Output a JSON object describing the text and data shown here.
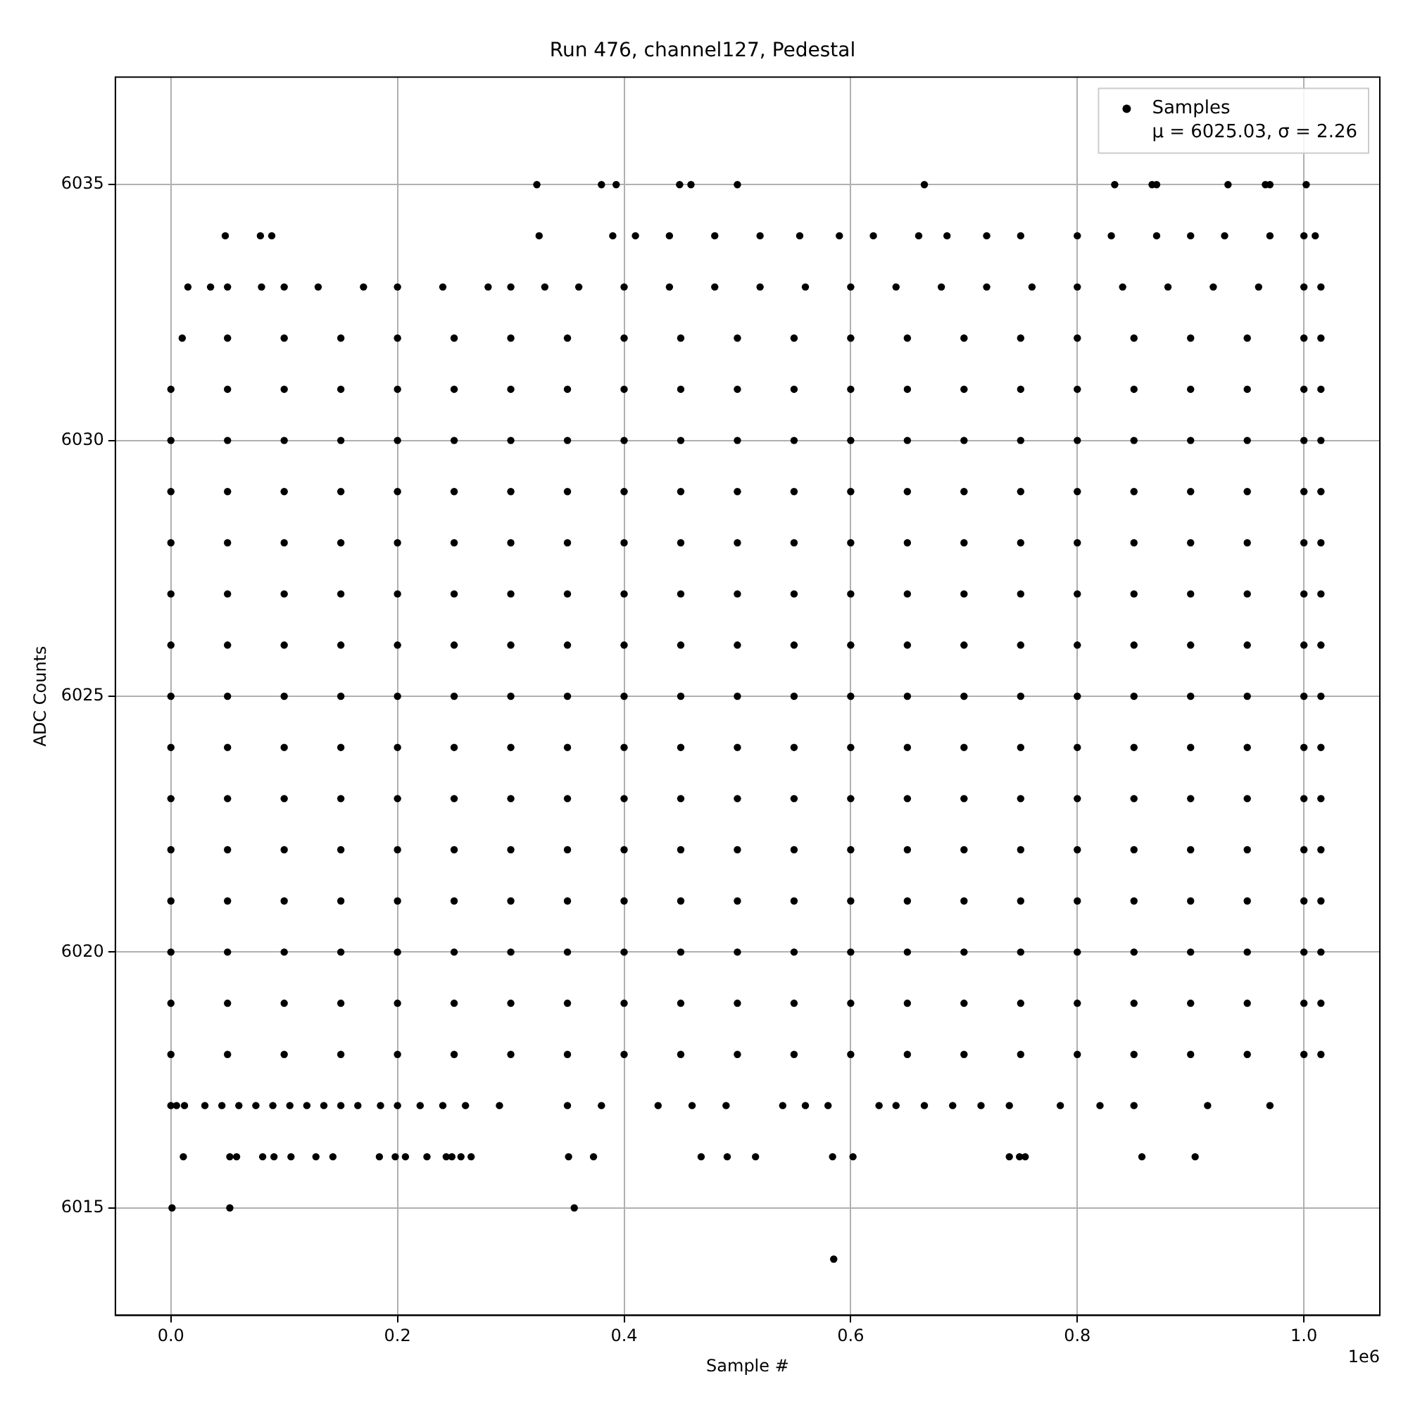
{
  "chart_data": {
    "type": "scatter",
    "title": "Run 476, channel127, Pedestal",
    "xlabel": "Sample #",
    "ylabel": "ADC Counts",
    "xlim": [
      -0.049,
      1.067
    ],
    "ylim": [
      6012.9,
      6037.1
    ],
    "xticks": [
      {
        "value": 0,
        "label": "0.0"
      },
      0.2,
      0.4,
      0.6,
      0.8,
      {
        "value": 1,
        "label": "1.0"
      }
    ],
    "yticks": [
      6015,
      6020,
      6025,
      6030,
      6035
    ],
    "grid": true,
    "legend": "top right",
    "marker": "circle",
    "annotations": [
      "1e6"
    ],
    "x": [
      0,
      0.05,
      0.1,
      0.15,
      0.2,
      0.25,
      0.3,
      0.35,
      0.4,
      0.45,
      0.5,
      0.55,
      0.6,
      0.65,
      0.7,
      0.75,
      0.8,
      0.85,
      0.9,
      0.95,
      1,
      1.015,
      0,
      0.05,
      0.1,
      0.15,
      0.2,
      0.25,
      0.3,
      0.35,
      0.4,
      0.45,
      0.5,
      0.55,
      0.6,
      0.65,
      0.7,
      0.75,
      0.8,
      0.85,
      0.9,
      0.95,
      1,
      1.015,
      0,
      0.05,
      0.1,
      0.15,
      0.2,
      0.25,
      0.3,
      0.35,
      0.4,
      0.45,
      0.5,
      0.55,
      0.6,
      0.65,
      0.7,
      0.75,
      0.8,
      0.85,
      0.9,
      0.95,
      1,
      1.015,
      0,
      0.05,
      0.1,
      0.15,
      0.2,
      0.25,
      0.3,
      0.35,
      0.4,
      0.45,
      0.5,
      0.55,
      0.6,
      0.65,
      0.7,
      0.75,
      0.8,
      0.85,
      0.9,
      0.95,
      1,
      1.015,
      0,
      0.05,
      0.1,
      0.15,
      0.2,
      0.25,
      0.3,
      0.35,
      0.4,
      0.45,
      0.5,
      0.55,
      0.6,
      0.65,
      0.7,
      0.75,
      0.8,
      0.85,
      0.9,
      0.95,
      1,
      1.015,
      0,
      0.05,
      0.1,
      0.15,
      0.2,
      0.25,
      0.3,
      0.35,
      0.4,
      0.45,
      0.5,
      0.55,
      0.6,
      0.65,
      0.7,
      0.75,
      0.8,
      0.85,
      0.9,
      0.95,
      1,
      1.015,
      0,
      0.05,
      0.1,
      0.15,
      0.2,
      0.25,
      0.3,
      0.35,
      0.4,
      0.45,
      0.5,
      0.55,
      0.6,
      0.65,
      0.7,
      0.75,
      0.8,
      0.85,
      0.9,
      0.95,
      1,
      1.015,
      0,
      0.05,
      0.1,
      0.15,
      0.2,
      0.25,
      0.3,
      0.35,
      0.4,
      0.45,
      0.5,
      0.55,
      0.6,
      0.65,
      0.7,
      0.75,
      0.8,
      0.85,
      0.9,
      0.95,
      1,
      1.015,
      0,
      0.05,
      0.1,
      0.15,
      0.2,
      0.25,
      0.3,
      0.35,
      0.4,
      0.45,
      0.5,
      0.55,
      0.6,
      0.65,
      0.7,
      0.75,
      0.8,
      0.85,
      0.9,
      0.95,
      1,
      1.015,
      0,
      0.05,
      0.1,
      0.15,
      0.2,
      0.25,
      0.3,
      0.35,
      0.4,
      0.45,
      0.5,
      0.55,
      0.6,
      0.65,
      0.7,
      0.75,
      0.8,
      0.85,
      0.9,
      0.95,
      1,
      1.015,
      0,
      0.05,
      0.1,
      0.15,
      0.2,
      0.25,
      0.3,
      0.35,
      0.4,
      0.45,
      0.5,
      0.55,
      0.6,
      0.65,
      0.7,
      0.75,
      0.8,
      0.85,
      0.9,
      0.95,
      1,
      1.015,
      0,
      0.05,
      0.1,
      0.15,
      0.2,
      0.25,
      0.3,
      0.35,
      0.4,
      0.45,
      0.5,
      0.55,
      0.6,
      0.65,
      0.7,
      0.75,
      0.8,
      0.85,
      0.9,
      0.95,
      1,
      1.015,
      0,
      0.05,
      0.1,
      0.15,
      0.2,
      0.25,
      0.3,
      0.35,
      0.4,
      0.45,
      0.5,
      0.55,
      0.6,
      0.65,
      0.7,
      0.75,
      0.8,
      0.85,
      0.9,
      0.95,
      1,
      1.015,
      0,
      0.05,
      0.1,
      0.15,
      0.2,
      0.25,
      0.3,
      0.35,
      0.4,
      0.45,
      0.5,
      0.55,
      0.6,
      0.65,
      0.7,
      0.75,
      0.8,
      0.85,
      0.9,
      0.95,
      1,
      1.015,
      0.01,
      0.05,
      0.1,
      0.15,
      0.2,
      0.25,
      0.3,
      0.35,
      0.4,
      0.45,
      0.5,
      0.55,
      0.6,
      0.65,
      0.7,
      0.75,
      0.8,
      0.85,
      0.9,
      0.95,
      1,
      1.015,
      0.015,
      0.035,
      0.05,
      0.08,
      0.1,
      0.13,
      0.17,
      0.2,
      0.24,
      0.28,
      0.3,
      0.33,
      0.36,
      0.4,
      0.44,
      0.48,
      0.52,
      0.56,
      0.6,
      0.64,
      0.68,
      0.72,
      0.76,
      0.8,
      0.84,
      0.88,
      0.92,
      0.96,
      1,
      1.015,
      0.048,
      0.079,
      0.089,
      0.325,
      0.39,
      0.41,
      0.44,
      0.48,
      0.52,
      0.555,
      0.59,
      0.62,
      0.66,
      0.685,
      0.72,
      0.75,
      0.8,
      0.83,
      0.87,
      0.9,
      0.93,
      0.97,
      1,
      1.01,
      0.323,
      0.38,
      0.393,
      0.449,
      0.459,
      0.5,
      0.665,
      0.833,
      0.866,
      0.87,
      0.933,
      0.966,
      0.97,
      1.002,
      0,
      0.005,
      0.012,
      0.03,
      0.045,
      0.06,
      0.075,
      0.09,
      0.105,
      0.12,
      0.135,
      0.15,
      0.165,
      0.185,
      0.2,
      0.22,
      0.24,
      0.26,
      0.29,
      0.35,
      0.38,
      0.43,
      0.46,
      0.49,
      0.54,
      0.56,
      0.58,
      0.625,
      0.64,
      0.665,
      0.69,
      0.715,
      0.74,
      0.785,
      0.82,
      0.85,
      0.915,
      0.97,
      0.011,
      0.052,
      0.058,
      0.081,
      0.091,
      0.106,
      0.128,
      0.143,
      0.184,
      0.198,
      0.207,
      0.226,
      0.243,
      0.248,
      0.256,
      0.265,
      0.351,
      0.373,
      0.468,
      0.491,
      0.516,
      0.584,
      0.602,
      0.74,
      0.749,
      0.754,
      0.857,
      0.904,
      0.001,
      0.052,
      0.356,
      0.585
    ],
    "series": [
      {
        "name": "Samples\nμ = 6025.03, σ = 2.26",
        "color": "#000000",
        "values": [
          6018,
          6018,
          6018,
          6018,
          6018,
          6018,
          6018,
          6018,
          6018,
          6018,
          6018,
          6018,
          6018,
          6018,
          6018,
          6018,
          6018,
          6018,
          6018,
          6018,
          6018,
          6018,
          6019,
          6019,
          6019,
          6019,
          6019,
          6019,
          6019,
          6019,
          6019,
          6019,
          6019,
          6019,
          6019,
          6019,
          6019,
          6019,
          6019,
          6019,
          6019,
          6019,
          6019,
          6019,
          6020,
          6020,
          6020,
          6020,
          6020,
          6020,
          6020,
          6020,
          6020,
          6020,
          6020,
          6020,
          6020,
          6020,
          6020,
          6020,
          6020,
          6020,
          6020,
          6020,
          6020,
          6020,
          6021,
          6021,
          6021,
          6021,
          6021,
          6021,
          6021,
          6021,
          6021,
          6021,
          6021,
          6021,
          6021,
          6021,
          6021,
          6021,
          6021,
          6021,
          6021,
          6021,
          6021,
          6021,
          6022,
          6022,
          6022,
          6022,
          6022,
          6022,
          6022,
          6022,
          6022,
          6022,
          6022,
          6022,
          6022,
          6022,
          6022,
          6022,
          6022,
          6022,
          6022,
          6022,
          6022,
          6022,
          6023,
          6023,
          6023,
          6023,
          6023,
          6023,
          6023,
          6023,
          6023,
          6023,
          6023,
          6023,
          6023,
          6023,
          6023,
          6023,
          6023,
          6023,
          6023,
          6023,
          6023,
          6023,
          6024,
          6024,
          6024,
          6024,
          6024,
          6024,
          6024,
          6024,
          6024,
          6024,
          6024,
          6024,
          6024,
          6024,
          6024,
          6024,
          6024,
          6024,
          6024,
          6024,
          6024,
          6024,
          6025,
          6025,
          6025,
          6025,
          6025,
          6025,
          6025,
          6025,
          6025,
          6025,
          6025,
          6025,
          6025,
          6025,
          6025,
          6025,
          6025,
          6025,
          6025,
          6025,
          6025,
          6025,
          6026,
          6026,
          6026,
          6026,
          6026,
          6026,
          6026,
          6026,
          6026,
          6026,
          6026,
          6026,
          6026,
          6026,
          6026,
          6026,
          6026,
          6026,
          6026,
          6026,
          6026,
          6026,
          6027,
          6027,
          6027,
          6027,
          6027,
          6027,
          6027,
          6027,
          6027,
          6027,
          6027,
          6027,
          6027,
          6027,
          6027,
          6027,
          6027,
          6027,
          6027,
          6027,
          6027,
          6027,
          6028,
          6028,
          6028,
          6028,
          6028,
          6028,
          6028,
          6028,
          6028,
          6028,
          6028,
          6028,
          6028,
          6028,
          6028,
          6028,
          6028,
          6028,
          6028,
          6028,
          6028,
          6028,
          6029,
          6029,
          6029,
          6029,
          6029,
          6029,
          6029,
          6029,
          6029,
          6029,
          6029,
          6029,
          6029,
          6029,
          6029,
          6029,
          6029,
          6029,
          6029,
          6029,
          6029,
          6029,
          6030,
          6030,
          6030,
          6030,
          6030,
          6030,
          6030,
          6030,
          6030,
          6030,
          6030,
          6030,
          6030,
          6030,
          6030,
          6030,
          6030,
          6030,
          6030,
          6030,
          6030,
          6030,
          6031,
          6031,
          6031,
          6031,
          6031,
          6031,
          6031,
          6031,
          6031,
          6031,
          6031,
          6031,
          6031,
          6031,
          6031,
          6031,
          6031,
          6031,
          6031,
          6031,
          6031,
          6031,
          6032,
          6032,
          6032,
          6032,
          6032,
          6032,
          6032,
          6032,
          6032,
          6032,
          6032,
          6032,
          6032,
          6032,
          6032,
          6032,
          6032,
          6032,
          6032,
          6032,
          6032,
          6032,
          6033,
          6033,
          6033,
          6033,
          6033,
          6033,
          6033,
          6033,
          6033,
          6033,
          6033,
          6033,
          6033,
          6033,
          6033,
          6033,
          6033,
          6033,
          6033,
          6033,
          6033,
          6033,
          6033,
          6033,
          6033,
          6033,
          6033,
          6033,
          6033,
          6033,
          6034,
          6034,
          6034,
          6034,
          6034,
          6034,
          6034,
          6034,
          6034,
          6034,
          6034,
          6034,
          6034,
          6034,
          6034,
          6034,
          6034,
          6034,
          6034,
          6034,
          6034,
          6034,
          6034,
          6034,
          6035,
          6035,
          6035,
          6035,
          6035,
          6035,
          6035,
          6035,
          6035,
          6035,
          6035,
          6035,
          6035,
          6035,
          6017,
          6017,
          6017,
          6017,
          6017,
          6017,
          6017,
          6017,
          6017,
          6017,
          6017,
          6017,
          6017,
          6017,
          6017,
          6017,
          6017,
          6017,
          6017,
          6017,
          6017,
          6017,
          6017,
          6017,
          6017,
          6017,
          6017,
          6017,
          6017,
          6017,
          6017,
          6017,
          6017,
          6017,
          6017,
          6017,
          6017,
          6017,
          6016,
          6016,
          6016,
          6016,
          6016,
          6016,
          6016,
          6016,
          6016,
          6016,
          6016,
          6016,
          6016,
          6016,
          6016,
          6016,
          6016,
          6016,
          6016,
          6016,
          6016,
          6016,
          6016,
          6016,
          6016,
          6016,
          6016,
          6016,
          6015,
          6015,
          6015,
          6014
        ]
      }
    ]
  }
}
